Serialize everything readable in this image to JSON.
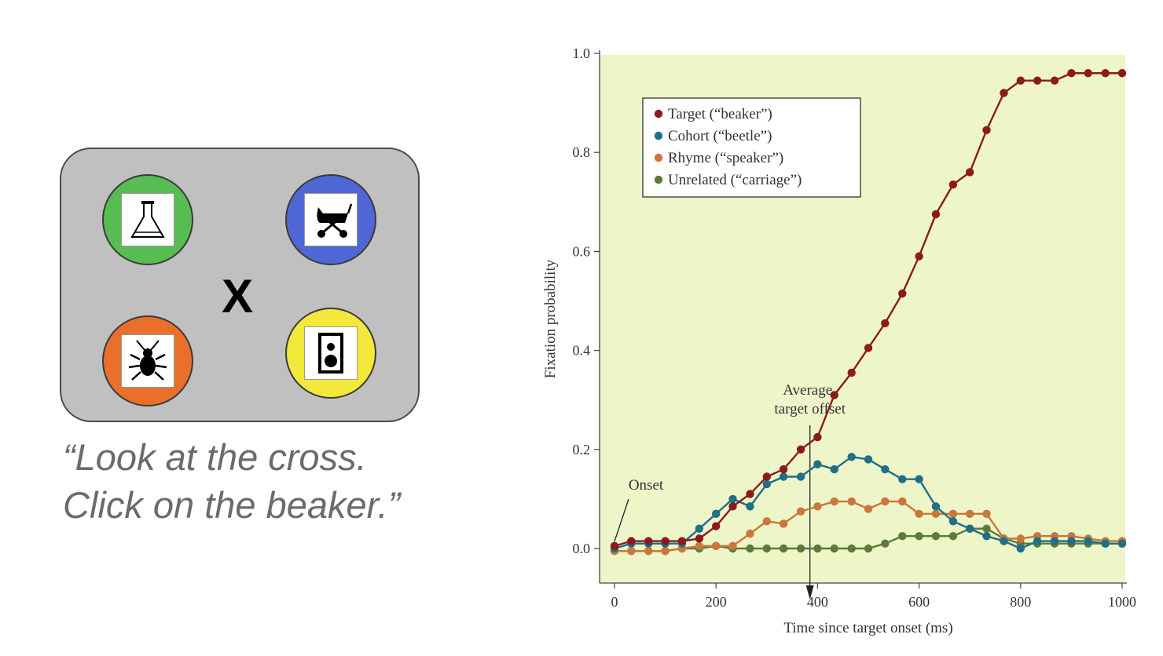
{
  "stimulus": {
    "cross": "X",
    "instruction_line1": "“Look at the cross.",
    "instruction_line2": "Click on the beaker.”",
    "items": [
      {
        "name": "beaker",
        "icon": "beaker-icon",
        "color": "#57bd52"
      },
      {
        "name": "carriage",
        "icon": "carriage-icon",
        "color": "#5066d4"
      },
      {
        "name": "beetle",
        "icon": "beetle-icon",
        "color": "#e96f2a"
      },
      {
        "name": "speaker",
        "icon": "speaker-icon",
        "color": "#f2e93a"
      }
    ]
  },
  "chart_data": {
    "type": "line",
    "xlabel": "Time since target onset (ms)",
    "ylabel": "Fixation probability",
    "xlim": [
      0,
      1000
    ],
    "ylim": [
      0,
      1.0
    ],
    "xticks": [
      0,
      200,
      400,
      600,
      800,
      1000
    ],
    "xtick_labels": [
      "0",
      "200",
      "400",
      "600",
      "800",
      "1000"
    ],
    "yticks": [
      0,
      0.2,
      0.4,
      0.6,
      0.8,
      1.0
    ],
    "ytick_labels": [
      "0.0",
      "0.2",
      "0.4",
      "0.6",
      "0.8",
      "1.0"
    ],
    "legend_position": "top-left",
    "background": "#eef5c9",
    "grid": false,
    "x": [
      0,
      33,
      67,
      100,
      133,
      167,
      200,
      233,
      267,
      300,
      333,
      367,
      400,
      433,
      467,
      500,
      533,
      567,
      600,
      633,
      667,
      700,
      733,
      767,
      800,
      833,
      867,
      900,
      933,
      967,
      1000
    ],
    "series": [
      {
        "name": "Target (“beaker”)",
        "color": "#8b1a1e",
        "values": [
          0.005,
          0.015,
          0.015,
          0.015,
          0.015,
          0.02,
          0.045,
          0.085,
          0.11,
          0.145,
          0.16,
          0.2,
          0.225,
          0.31,
          0.355,
          0.405,
          0.455,
          0.515,
          0.59,
          0.675,
          0.735,
          0.76,
          0.845,
          0.92,
          0.945,
          0.945,
          0.945,
          0.96,
          0.96,
          0.96,
          0.96
        ]
      },
      {
        "name": "Cohort (“beetle”)",
        "color": "#1f6f86",
        "values": [
          0.0,
          0.01,
          0.01,
          0.01,
          0.01,
          0.04,
          0.07,
          0.1,
          0.085,
          0.13,
          0.145,
          0.145,
          0.17,
          0.16,
          0.185,
          0.18,
          0.16,
          0.14,
          0.14,
          0.085,
          0.055,
          0.04,
          0.025,
          0.015,
          0.0,
          0.015,
          0.015,
          0.015,
          0.015,
          0.01,
          0.01
        ]
      },
      {
        "name": "Rhyme (“speaker”)",
        "color": "#c9773a",
        "values": [
          -0.005,
          -0.005,
          -0.005,
          -0.005,
          0.0,
          0.005,
          0.005,
          0.005,
          0.03,
          0.055,
          0.05,
          0.075,
          0.085,
          0.095,
          0.095,
          0.08,
          0.095,
          0.095,
          0.07,
          0.07,
          0.07,
          0.07,
          0.07,
          0.02,
          0.02,
          0.025,
          0.025,
          0.025,
          0.02,
          0.015,
          0.015
        ]
      },
      {
        "name": "Unrelated (“carriage”)",
        "color": "#5e7a3a",
        "values": [
          -0.005,
          -0.005,
          -0.005,
          -0.005,
          0.0,
          0.0,
          0.005,
          0.0,
          0.0,
          0.0,
          0.0,
          0.0,
          0.0,
          0.0,
          0.0,
          0.0,
          0.01,
          0.025,
          0.025,
          0.025,
          0.025,
          0.04,
          0.04,
          0.02,
          0.01,
          0.01,
          0.01,
          0.01,
          0.01,
          0.01,
          0.01
        ]
      }
    ],
    "annotations": {
      "onset": "Onset",
      "offset_line1": "Average",
      "offset_line2": "target offset",
      "offset_time": 385
    }
  }
}
